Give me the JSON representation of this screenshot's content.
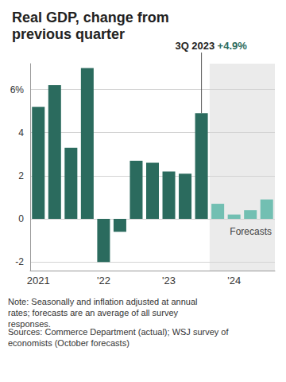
{
  "chart_data": {
    "type": "bar",
    "title": "Real GDP, change from previous quarter",
    "categories": [
      "2021",
      null,
      null,
      null,
      "'22",
      null,
      null,
      null,
      "'23",
      null,
      null,
      null,
      "'24",
      null,
      null
    ],
    "values": [
      5.2,
      6.2,
      3.3,
      7.0,
      -2.0,
      -0.6,
      2.7,
      2.6,
      2.2,
      2.1,
      4.9,
      0.7,
      0.2,
      0.4,
      0.9
    ],
    "colors": [
      "#2b6b5e",
      "#2b6b5e",
      "#2b6b5e",
      "#2b6b5e",
      "#2b6b5e",
      "#2b6b5e",
      "#2b6b5e",
      "#2b6b5e",
      "#2b6b5e",
      "#2b6b5e",
      "#2b6b5e",
      "#72bfb2",
      "#72bfb2",
      "#72bfb2",
      "#72bfb2"
    ],
    "ylim": [
      -2.4,
      7.2
    ],
    "yticks": [
      -2,
      0,
      2,
      4,
      {
        "value": 6,
        "label": "6%"
      }
    ],
    "grid": true,
    "data_labels": false,
    "annotations": [
      {
        "text": "3Q 2023 +4.9%",
        "value": 4.9
      },
      {
        "text": "Forecasts"
      }
    ],
    "note": "Note: Seasonally and inflation adjusted at annual rates; forecasts are an average of all survey responses.",
    "source": "Sources: Commerce Department (actual); WSJ survey of economists (October forecasts)"
  }
}
